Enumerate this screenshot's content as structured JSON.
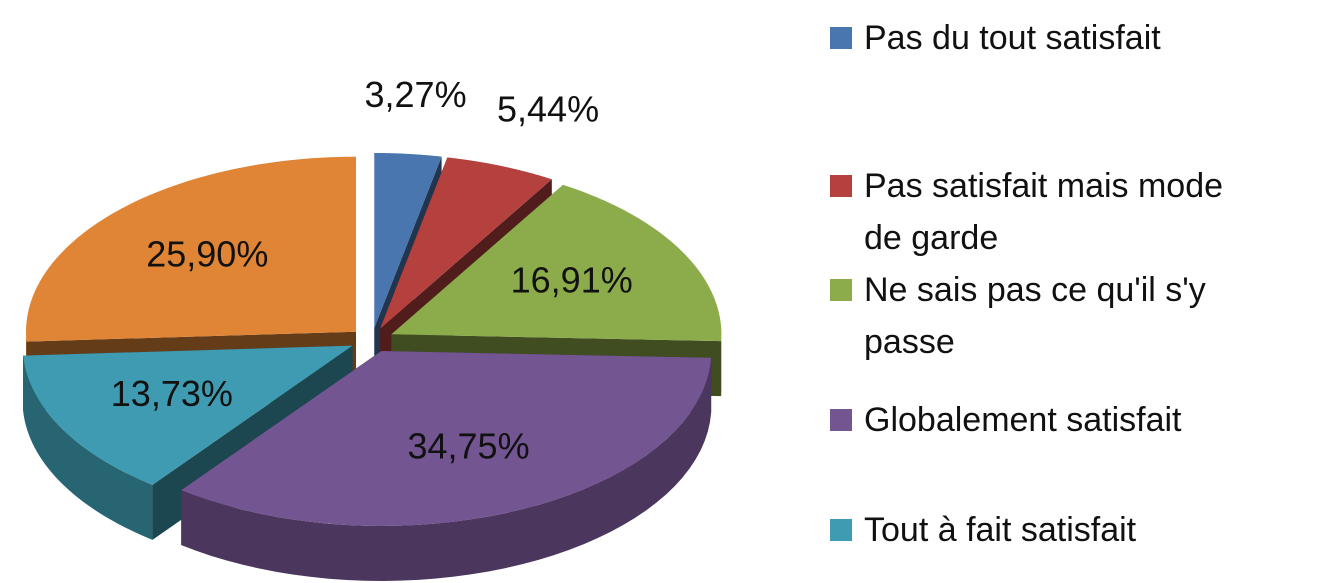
{
  "chart_data": {
    "type": "pie",
    "categories": [
      "Pas du tout satisfait",
      "Pas satisfait mais mode de garde",
      "Ne sais pas ce qu'il s'y passe",
      "Globalement satisfait",
      "Tout à fait satisfait",
      null
    ],
    "values": [
      3.27,
      5.44,
      16.91,
      34.75,
      13.73,
      25.9
    ],
    "value_labels": [
      "3,27%",
      "5,44%",
      "16,91%",
      "34,75%",
      "13,73%",
      "25,90%"
    ],
    "colors": [
      "#4a76b0",
      "#b5413f",
      "#8cab4a",
      "#735591",
      "#3e9bb1",
      "#e08535"
    ]
  }
}
